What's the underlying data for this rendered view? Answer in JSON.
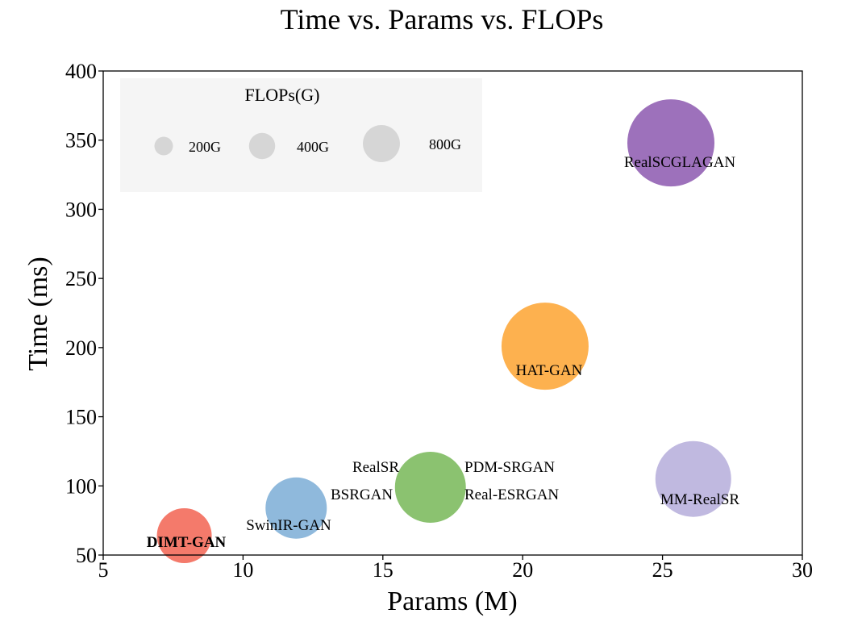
{
  "chart_data": {
    "type": "scatter",
    "title": "Time vs. Params vs. FLOPs",
    "xlabel": "Params (M)",
    "ylabel": "Time (ms)",
    "xlim": [
      5,
      30
    ],
    "ylim": [
      50,
      400
    ],
    "xticks": [
      5,
      10,
      15,
      20,
      25,
      30
    ],
    "yticks": [
      50,
      100,
      150,
      200,
      250,
      300,
      350,
      400
    ],
    "grid": false,
    "legend": {
      "title": "FLOPs(G)",
      "placement": "top-left",
      "items": [
        {
          "label": "200G",
          "flops": 200
        },
        {
          "label": "400G",
          "flops": 400
        },
        {
          "label": "800G",
          "flops": 800
        }
      ]
    },
    "points": [
      {
        "name": "DIMT-GAN",
        "params": 7.9,
        "time": 64,
        "flops": 300,
        "color": "#f47a6b",
        "bold": true
      },
      {
        "name": "SwinIR-GAN",
        "params": 11.9,
        "time": 84,
        "flops": 470,
        "color": "#8fb9dc",
        "bold": false
      },
      {
        "name": "RealSR / BSRGAN / Real-ESRGAN / PDM-SRGAN",
        "params": 16.7,
        "time": 99,
        "flops": 660,
        "color": "#8bc270",
        "bold": false
      },
      {
        "name": "HAT-GAN",
        "params": 20.8,
        "time": 201,
        "flops": 870,
        "color": "#fdb14f",
        "bold": false
      },
      {
        "name": "MM-RealSR",
        "params": 26.1,
        "time": 105,
        "flops": 750,
        "color": "#c0b9e0",
        "bold": false
      },
      {
        "name": "RealSCGLAGAN",
        "params": 25.3,
        "time": 348,
        "flops": 1000,
        "color": "#9d71bb",
        "bold": false
      }
    ],
    "labels": [
      {
        "text": "DIMT-GAN",
        "bold": true
      },
      {
        "text": "SwinIR-GAN",
        "bold": false
      },
      {
        "text": "BSRGAN",
        "bold": false
      },
      {
        "text": "RealSR",
        "bold": false
      },
      {
        "text": "PDM-SRGAN",
        "bold": false
      },
      {
        "text": "Real-ESRGAN",
        "bold": false
      },
      {
        "text": "HAT-GAN",
        "bold": false
      },
      {
        "text": "MM-RealSR",
        "bold": false
      },
      {
        "text": "RealSCGLAGAN",
        "bold": false
      }
    ],
    "colors": {
      "legend_bubble": "#d6d6d6",
      "legend_bg": "#f5f5f5"
    }
  }
}
